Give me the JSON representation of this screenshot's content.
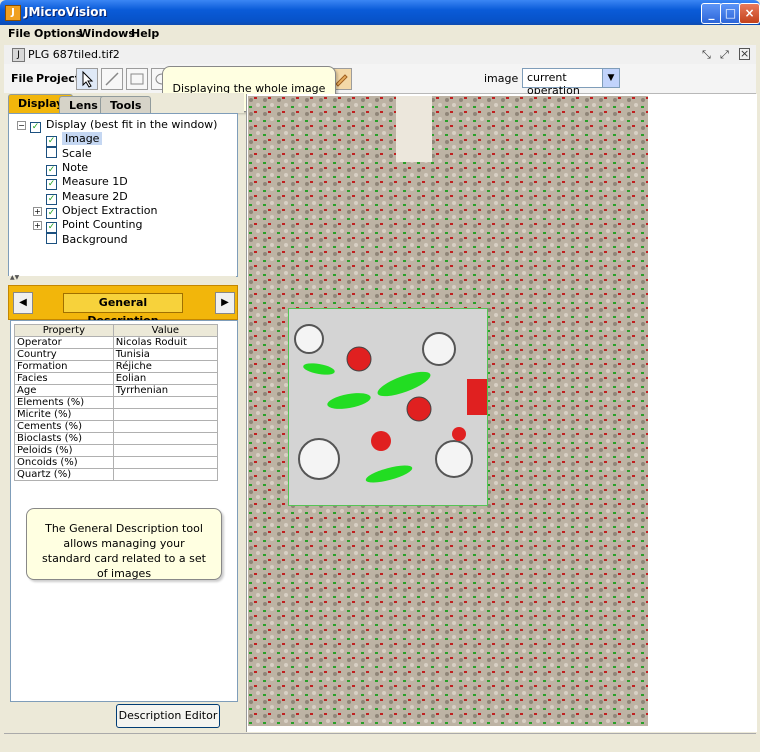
{
  "window": {
    "title": "JMicroVision"
  },
  "menubar": [
    "File",
    "Options",
    "Windows",
    "Help"
  ],
  "document": {
    "title": "PLG 687tiled.tif2"
  },
  "toolbar": {
    "file": "File",
    "project": "Project",
    "image_label": "image :",
    "image_value": "current operation"
  },
  "tooltip_top": "Displaying the whole image",
  "tabs": [
    "Display",
    "Lens",
    "Tools"
  ],
  "tree": {
    "root": "Display (best fit in the window)",
    "items": [
      "Image",
      "Scale",
      "Note",
      "Measure 1D",
      "Measure 2D",
      "Object Extraction",
      "Point Counting",
      "Background"
    ]
  },
  "panel": {
    "title": "General Description"
  },
  "table": {
    "headers": [
      "Property",
      "Value"
    ],
    "rows": [
      [
        "Operator",
        "Nicolas Roduit"
      ],
      [
        "Country",
        "Tunisia"
      ],
      [
        "Formation",
        "Réjiche"
      ],
      [
        "Facies",
        "Eolian"
      ],
      [
        "Age",
        "Tyrrhenian"
      ],
      [
        "Elements (%)",
        ""
      ],
      [
        "Micrite (%)",
        ""
      ],
      [
        "Cements (%)",
        ""
      ],
      [
        "Bioclasts (%)",
        ""
      ],
      [
        "Peloids (%)",
        ""
      ],
      [
        "Oncoids (%)",
        ""
      ],
      [
        "Quartz (%)",
        ""
      ]
    ]
  },
  "tooltip_bottom": "The General Description tool allows managing your standard card related to a set of images",
  "button": {
    "editor": "Description Editor"
  },
  "colors": {
    "accent": "#f2b60b",
    "title_bar": "#0a5bd8"
  }
}
